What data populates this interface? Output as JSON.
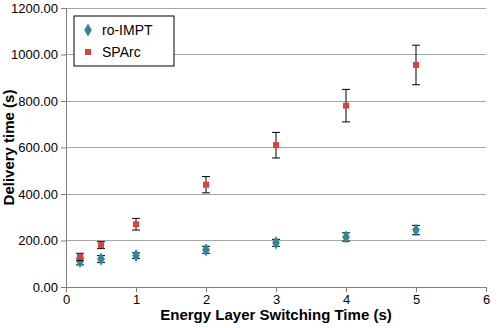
{
  "chart_data": {
    "type": "scatter",
    "x_label": "Energy Layer Switching Time (s)",
    "y_label": "Delivery time (s)",
    "x": [
      0.2,
      0.5,
      1,
      2,
      3,
      4,
      5
    ],
    "series": [
      {
        "name": "ro-IMPT",
        "color": "#31859c",
        "marker": "diamond",
        "values": [
          110,
          120,
          135,
          160,
          190,
          215,
          245
        ],
        "errors": [
          15,
          15,
          12,
          15,
          15,
          18,
          20
        ]
      },
      {
        "name": "SPArc",
        "color": "#d9433b",
        "marker": "square",
        "values": [
          130,
          180,
          270,
          440,
          610,
          780,
          955
        ],
        "errors": [
          15,
          15,
          25,
          35,
          55,
          70,
          85
        ]
      }
    ],
    "xlim": [
      0,
      6
    ],
    "xticks": [
      0,
      1,
      2,
      3,
      4,
      5,
      6
    ],
    "ylim": [
      0,
      1200
    ],
    "yticks": [
      {
        "value": 0,
        "label": "0.00"
      },
      {
        "value": 200,
        "label": "200.00"
      },
      {
        "value": 400,
        "label": "400.00"
      },
      {
        "value": 600,
        "label": "600.00"
      },
      {
        "value": 800,
        "label": "800.00"
      },
      {
        "value": 1000,
        "label": "1000.00"
      },
      {
        "value": 1200,
        "label": "1200.00"
      }
    ],
    "grid": "y",
    "legend": "upper left"
  }
}
